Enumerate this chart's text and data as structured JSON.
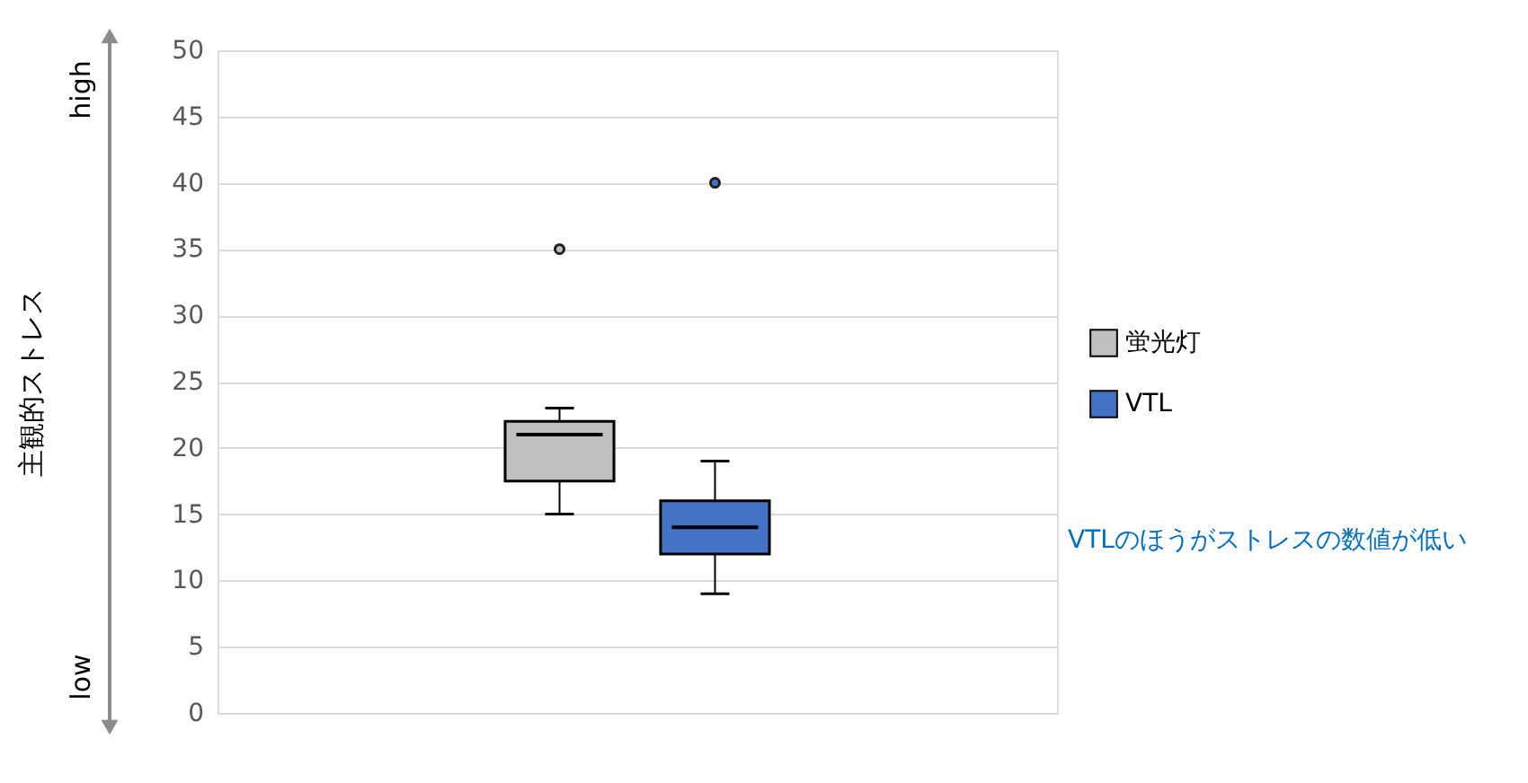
{
  "chart_data": {
    "type": "box",
    "ylabel": "主観的ストレス",
    "categories": [
      null
    ],
    "series": [
      {
        "name": "蛍光灯",
        "color": "#c0c0c0",
        "boxes": [
          {
            "low": 15,
            "q1": 17.5,
            "median": 21,
            "q3": 22,
            "high": 23,
            "outliers": [
              35
            ]
          }
        ]
      },
      {
        "name": "VTL",
        "color": "#4472c4",
        "boxes": [
          {
            "low": 9,
            "q1": 12,
            "median": 14,
            "q3": 16,
            "high": 19,
            "outliers": [
              40
            ]
          }
        ]
      }
    ],
    "ylim": [
      0,
      50
    ],
    "yticks": [
      0,
      5,
      10,
      15,
      20,
      25,
      30,
      35,
      40,
      45,
      50
    ],
    "grid": "y",
    "legend": "right",
    "annotations": [
      "high",
      "low",
      "VTLのほうがストレスの数値が低い"
    ]
  }
}
